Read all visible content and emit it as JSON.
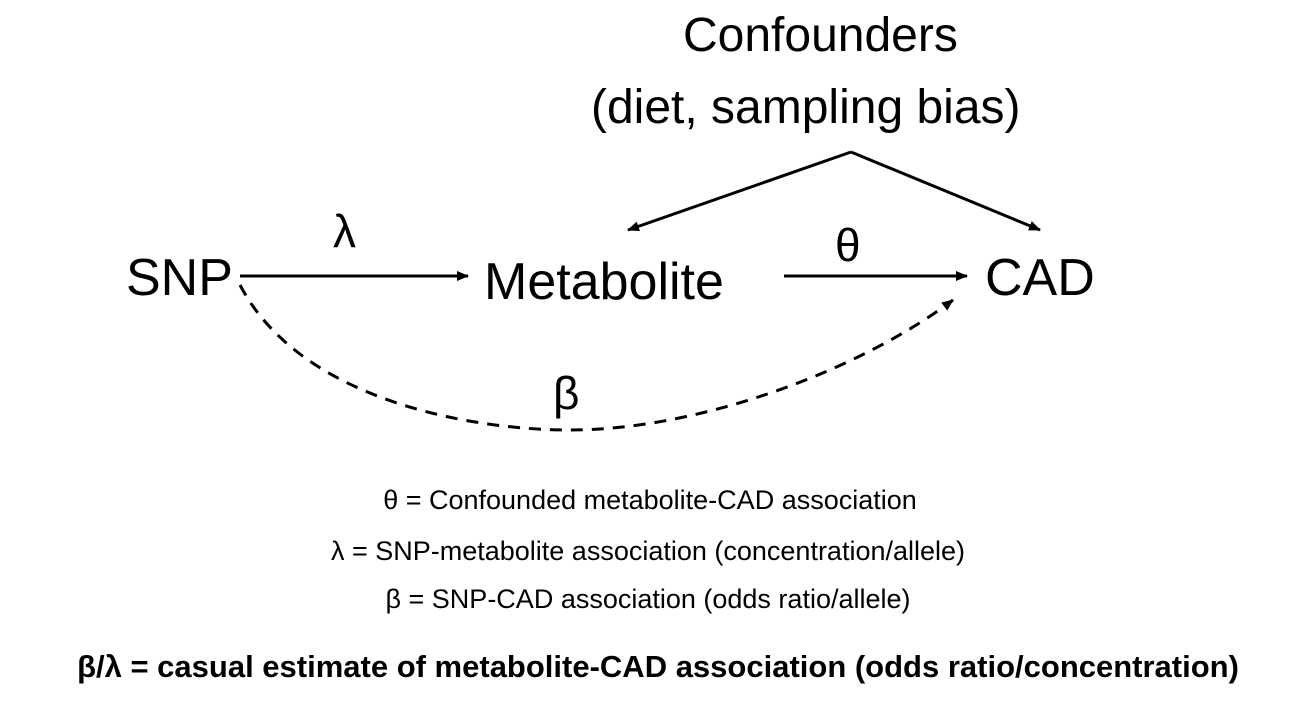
{
  "nodes": {
    "confounders_line1": "Confounders",
    "confounders_line2": "(diet, sampling bias)",
    "snp": "SNP",
    "metabolite": "Metabolite",
    "cad": "CAD"
  },
  "edge_labels": {
    "lambda": "λ",
    "theta": "θ",
    "beta": "β"
  },
  "legend": {
    "theta": "θ = Confounded  metabolite-CAD association",
    "lambda": "λ = SNP-metabolite association (concentration/allele)",
    "beta": "β = SNP-CAD association (odds ratio/allele)"
  },
  "bottom_note": "β/λ = casual estimate of metabolite-CAD association (odds ratio/concentration)",
  "colors": {
    "text": "#000000",
    "background": "#ffffff"
  }
}
